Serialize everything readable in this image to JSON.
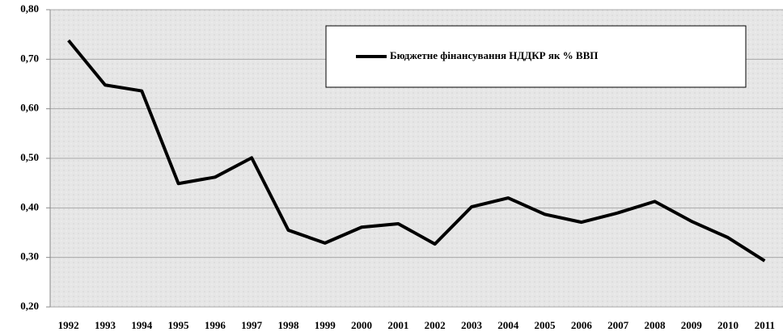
{
  "chart_data": {
    "type": "line",
    "categories": [
      "1992",
      "1993",
      "1994",
      "1995",
      "1996",
      "1997",
      "1998",
      "1999",
      "2000",
      "2001",
      "2002",
      "2003",
      "2004",
      "2005",
      "2006",
      "2007",
      "2008",
      "2009",
      "2010",
      "2011"
    ],
    "series": [
      {
        "name": "Бюджетне фінансування НДДКР як % ВВП",
        "color": "#000000",
        "values": [
          0.738,
          0.648,
          0.636,
          0.449,
          0.462,
          0.501,
          0.355,
          0.329,
          0.361,
          0.368,
          0.327,
          0.402,
          0.42,
          0.387,
          0.371,
          0.39,
          0.413,
          0.373,
          0.34,
          0.293
        ]
      }
    ],
    "ylim": [
      0.2,
      0.8
    ],
    "yticks": [
      {
        "value": 0.2,
        "label": "0,20"
      },
      {
        "value": 0.3,
        "label": "0,30"
      },
      {
        "value": 0.4,
        "label": "0,40"
      },
      {
        "value": 0.5,
        "label": "0,50"
      },
      {
        "value": 0.6,
        "label": "0,60"
      },
      {
        "value": 0.7,
        "label": "0,70"
      },
      {
        "value": 0.8,
        "label": "0,80"
      }
    ],
    "grid": true,
    "legend": "top-right"
  }
}
